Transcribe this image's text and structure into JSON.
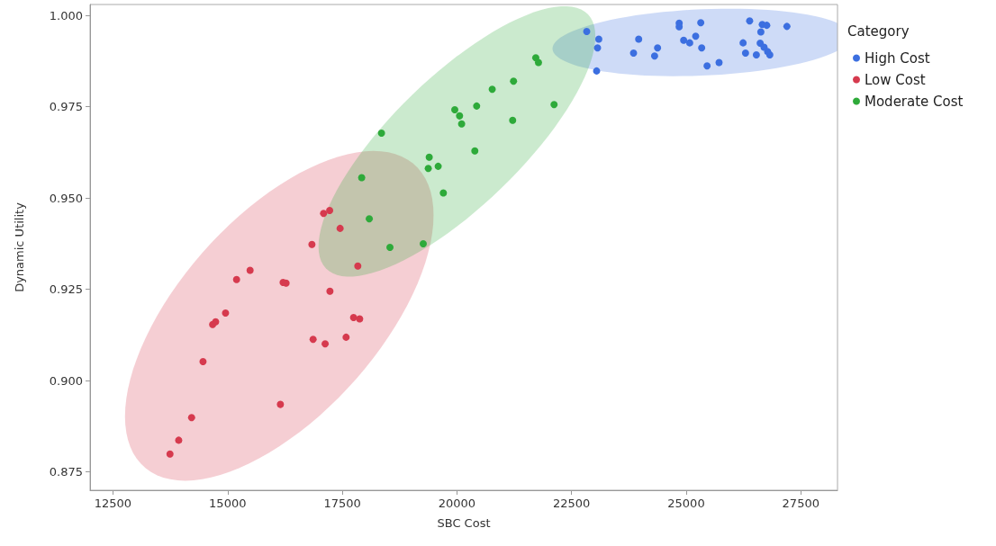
{
  "chart_data": {
    "type": "scatter",
    "xlabel": "SBC Cost",
    "ylabel": "Dynamic Utility",
    "legend_title": "Category",
    "legend": "right",
    "grid": false,
    "marker": "circle",
    "xlim": [
      12000,
      28300
    ],
    "xticks": [
      12500,
      15000,
      17500,
      20000,
      22500,
      25000,
      27500
    ],
    "ylim": [
      0.87,
      1.003
    ],
    "yticks": [
      {
        "value": 0.875,
        "label": "0.875"
      },
      {
        "value": 0.9,
        "label": "0.900"
      },
      {
        "value": 0.925,
        "label": "0.925"
      },
      {
        "value": 0.95,
        "label": "0.950"
      },
      {
        "value": 0.975,
        "label": "0.975"
      },
      {
        "value": 1,
        "label": "1.000"
      }
    ],
    "series": [
      {
        "name": "High Cost",
        "color": "#3c6fe0",
        "x": [
          22831,
          23094,
          23067,
          23047,
          23964,
          23852,
          24376,
          24311,
          24847,
          24847,
          25318,
          24945,
          25077,
          25207,
          25338,
          25456,
          25717,
          26384,
          26659,
          26757,
          26628,
          27197,
          26241,
          26294,
          26530,
          26614,
          26698,
          26777,
          26824
        ],
        "values": [
          0.9956,
          0.9935,
          0.9911,
          0.9848,
          0.9935,
          0.9897,
          0.9911,
          0.9889,
          0.9979,
          0.9969,
          0.998,
          0.9932,
          0.9925,
          0.9943,
          0.9911,
          0.9862,
          0.9871,
          0.9985,
          0.9975,
          0.9973,
          0.9955,
          0.997,
          0.9925,
          0.9897,
          0.9892,
          0.9924,
          0.9913,
          0.9901,
          0.9892
        ]
      },
      {
        "name": "Low Cost",
        "color": "#d63a4e",
        "x": [
          17093,
          17225,
          17453,
          16838,
          17839,
          15490,
          15195,
          16210,
          16275,
          17231,
          14954,
          14673,
          14738,
          17747,
          17879,
          16864,
          17127,
          17584,
          14463,
          16151,
          14214,
          13933,
          13743
        ],
        "values": [
          0.9458,
          0.9466,
          0.9417,
          0.9373,
          0.9314,
          0.9302,
          0.9277,
          0.9269,
          0.9267,
          0.9245,
          0.9185,
          0.9154,
          0.9161,
          0.9173,
          0.9169,
          0.9113,
          0.9101,
          0.9119,
          0.9052,
          0.8935,
          0.8899,
          0.8837,
          0.8799
        ]
      },
      {
        "name": "Moderate Cost",
        "color": "#2eaa3a",
        "x": [
          21720,
          21779,
          21235,
          20770,
          20431,
          19954,
          20058,
          20103,
          21216,
          22119,
          18356,
          20391,
          19396,
          19376,
          19592,
          19704,
          17924,
          18089,
          18540,
          19266
        ],
        "values": [
          0.9884,
          0.9871,
          0.982,
          0.9798,
          0.9752,
          0.9742,
          0.9725,
          0.9703,
          0.9713,
          0.9756,
          0.9678,
          0.9629,
          0.9612,
          0.9581,
          0.9587,
          0.9514,
          0.9556,
          0.9443,
          0.9365,
          0.9375
        ]
      }
    ]
  }
}
